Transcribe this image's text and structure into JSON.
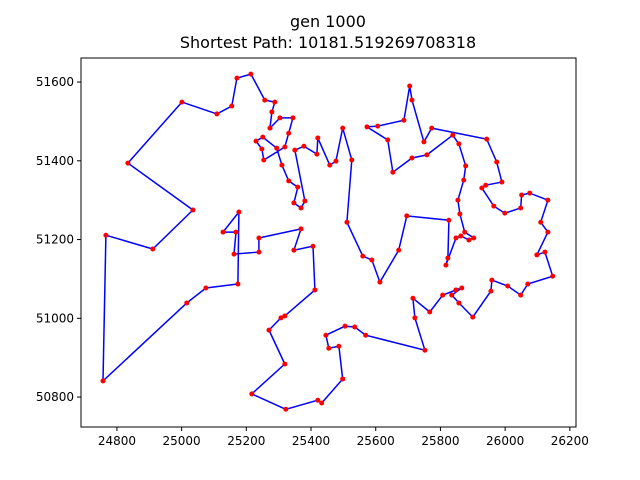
{
  "chart_data": {
    "type": "line",
    "title": "gen 1000",
    "subtitle": "Shortest Path: 10181.519269708318",
    "closed": true,
    "xlim": [
      24689,
      26219
    ],
    "ylim": [
      50724,
      51661
    ],
    "xticks": [
      24800,
      25000,
      25200,
      25400,
      25600,
      25800,
      26000,
      26200
    ],
    "yticks": [
      50800,
      51000,
      51200,
      51400,
      51600
    ],
    "series": [
      {
        "color": "#0000ff",
        "marker_color": "#ff0000",
        "x": [
          24757,
          24766,
          24911,
          25035,
          24834,
          25001,
          25109,
          25155,
          25171,
          25214,
          25257,
          25288,
          25279,
          25273,
          25304,
          25344,
          25331,
          25319,
          25254,
          25248,
          25230,
          25251,
          25294,
          25310,
          25331,
          25359,
          25347,
          25369,
          25381,
          25350,
          25378,
          25418,
          25421,
          25458,
          25477,
          25498,
          25526,
          25511,
          25560,
          25588,
          25613,
          25671,
          25696,
          25826,
          25823,
          25817,
          25848,
          25863,
          25888,
          25903,
          25875,
          25860,
          25854,
          25872,
          25878,
          25857,
          25838,
          25758,
          25712,
          25653,
          25637,
          25573,
          25606,
          25687,
          25705,
          25712,
          25749,
          25773,
          25943,
          25974,
          25990,
          25940,
          25928,
          25965,
          25999,
          26048,
          26051,
          26076,
          26132,
          26110,
          26132,
          26098,
          26123,
          26147,
          26070,
          26048,
          26008,
          25959,
          25956,
          25900,
          25857,
          25835,
          25866,
          25848,
          25807,
          25767,
          25715,
          25721,
          25752,
          25569,
          25535,
          25505,
          25446,
          25455,
          25486,
          25498,
          25433,
          25421,
          25322,
          25217,
          25319,
          25270,
          25307,
          25319,
          25412,
          25406,
          25347,
          25369,
          25239,
          25239,
          25162,
          25168,
          25128,
          25177,
          25174,
          25075,
          25016
        ],
        "values": [
          50841,
          51211,
          51176,
          51275,
          51394,
          51549,
          51519,
          51539,
          51610,
          51620,
          51554,
          51549,
          51524,
          51483,
          51509,
          51509,
          51470,
          51435,
          51402,
          51430,
          51450,
          51460,
          51432,
          51389,
          51349,
          51333,
          51293,
          51280,
          51298,
          51427,
          51437,
          51417,
          51458,
          51389,
          51399,
          51483,
          51402,
          51244,
          51158,
          51148,
          51092,
          51173,
          51260,
          51249,
          51153,
          51135,
          51204,
          51209,
          51199,
          51204,
          51219,
          51265,
          51300,
          51351,
          51387,
          51443,
          51465,
          51415,
          51407,
          51371,
          51453,
          51486,
          51488,
          51503,
          51590,
          51554,
          51448,
          51483,
          51455,
          51397,
          51346,
          51338,
          51331,
          51285,
          51267,
          51280,
          51313,
          51318,
          51300,
          51244,
          51219,
          51161,
          51168,
          51107,
          51087,
          51059,
          51082,
          51097,
          51069,
          51003,
          51039,
          51059,
          51077,
          51072,
          51059,
          51016,
          51051,
          51001,
          50919,
          50957,
          50978,
          50980,
          50957,
          50924,
          50929,
          50846,
          50785,
          50792,
          50769,
          50808,
          50884,
          50970,
          51001,
          51006,
          51072,
          51183,
          51173,
          51227,
          51204,
          51168,
          51163,
          51219,
          51219,
          51270,
          51087,
          51077,
          51039
        ]
      }
    ]
  }
}
